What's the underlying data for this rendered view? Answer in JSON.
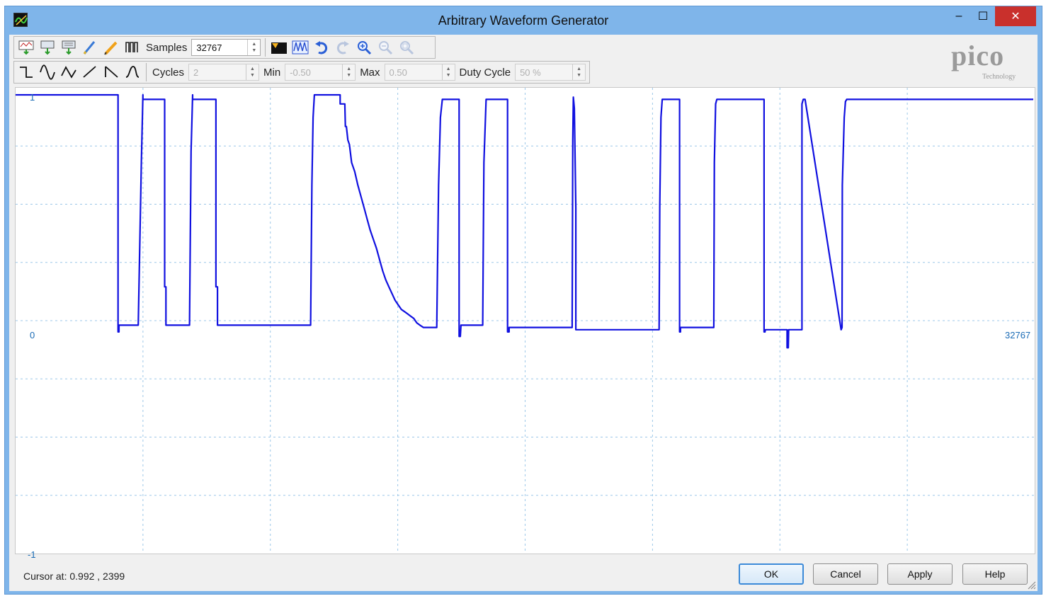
{
  "window": {
    "title": "Arbitrary Waveform Generator",
    "minimize_glyph": "–",
    "maximize_glyph": "☐",
    "close_glyph": "✕"
  },
  "toolbar1": {
    "icons": [
      "import-icon",
      "export-icon",
      "export-alt-icon",
      "pen-icon",
      "pencil-icon",
      "bars-icon"
    ],
    "samples_label": "Samples",
    "samples_value": "32767",
    "tool_icons": [
      "fit-icon",
      "waveform-icon",
      "undo-icon",
      "redo-icon",
      "zoom-in-icon",
      "zoom-out-icon",
      "zoom-fit-icon"
    ]
  },
  "toolbar2": {
    "shape_icons": [
      "square-wave-icon",
      "sine-wave-icon",
      "triangle-wave-icon",
      "ramp-up-icon",
      "ramp-down-icon",
      "gaussian-icon"
    ],
    "cycles_label": "Cycles",
    "cycles_value": "2",
    "min_label": "Min",
    "min_value": "-0.50",
    "max_label": "Max",
    "max_value": "0.50",
    "duty_label": "Duty Cycle",
    "duty_value": "50 %"
  },
  "logo": {
    "text": "pico",
    "subtext": "Technology"
  },
  "plot": {
    "y_top_label": "1",
    "y_zero_label": "0",
    "y_bottom_label": "-1",
    "x_max_label": "32767",
    "trace_color": "#1010e0",
    "grid_color": "#9cc7e8"
  },
  "chart_data": {
    "type": "line",
    "title": "",
    "xlabel": "",
    "ylabel": "",
    "xlim": [
      0,
      32767
    ],
    "ylim": [
      -1,
      1
    ],
    "grid": true,
    "series": [
      {
        "x": [
          0,
          3300,
          3300,
          3330,
          3330,
          3950,
          4050,
          4100,
          4100,
          4800,
          4800,
          4840,
          4840,
          5600,
          5650,
          5700,
          5700,
          6450,
          6450,
          6500,
          6500,
          9500,
          9540,
          9580,
          9620,
          10450,
          10450,
          10600,
          10620,
          10650,
          10700,
          10750,
          10820,
          10920,
          11020,
          11120,
          11220,
          11320,
          11420,
          11520,
          11620,
          11720,
          11820,
          11920,
          12020,
          12120,
          12220,
          12320,
          12420,
          12520,
          12620,
          12720,
          12820,
          12920,
          13020,
          13130,
          13560,
          13620,
          13680,
          13740,
          14280,
          14280,
          14320,
          14340,
          15040,
          15080,
          15150,
          15150,
          15840,
          15840,
          15890,
          15890,
          17920,
          17940,
          17960,
          17990,
          18040,
          18040,
          20720,
          20740,
          20780,
          20820,
          20820,
          21380,
          21380,
          21410,
          21410,
          22480,
          22500,
          22540,
          22580,
          24100,
          24100,
          24130,
          24140,
          24840,
          24840,
          24880,
          24890,
          25320,
          25320,
          25360,
          25420,
          26580,
          26580,
          26610,
          26620,
          26680,
          26720,
          26760,
          26800,
          32767
        ],
        "y": [
          1,
          1,
          -0.05,
          -0.05,
          -0.02,
          -0.02,
          0.7,
          1,
          0.98,
          0.98,
          0.15,
          0.15,
          -0.02,
          -0.02,
          0.75,
          1,
          0.98,
          0.98,
          0.15,
          0.15,
          -0.02,
          -0.02,
          0.6,
          0.9,
          1,
          1,
          0.96,
          0.96,
          0.86,
          0.86,
          0.8,
          0.78,
          0.7,
          0.66,
          0.6,
          0.55,
          0.5,
          0.45,
          0.4,
          0.36,
          0.32,
          0.27,
          0.22,
          0.18,
          0.15,
          0.12,
          0.09,
          0.07,
          0.05,
          0.04,
          0.03,
          0.02,
          0.01,
          -0.01,
          -0.02,
          -0.03,
          -0.03,
          0.6,
          0.9,
          0.98,
          0.98,
          -0.07,
          -0.07,
          -0.02,
          -0.02,
          0.7,
          0.98,
          0.98,
          0.98,
          -0.05,
          -0.05,
          -0.03,
          -0.03,
          0.8,
          0.99,
          0.94,
          0.5,
          -0.04,
          -0.04,
          0.5,
          0.9,
          0.98,
          0.98,
          0.98,
          -0.05,
          -0.05,
          -0.03,
          -0.03,
          0.7,
          0.96,
          0.98,
          0.98,
          -0.05,
          -0.05,
          -0.04,
          -0.04,
          -0.12,
          -0.12,
          -0.04,
          -0.04,
          0.96,
          0.98,
          0.98,
          -0.04,
          -0.04,
          -0.03,
          0.6,
          0.9,
          0.97,
          0.98,
          0.98,
          0.98
        ]
      }
    ]
  },
  "status": {
    "cursor_text": "Cursor at: 0.992 , 2399"
  },
  "buttons": {
    "ok": "OK",
    "cancel": "Cancel",
    "apply": "Apply",
    "help": "Help"
  }
}
